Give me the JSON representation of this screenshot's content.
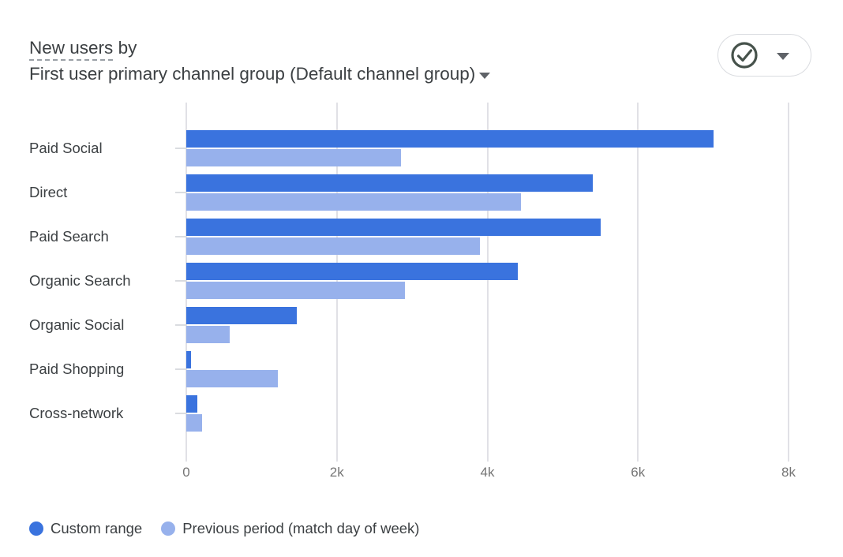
{
  "header": {
    "metric_label": "New users",
    "connector": "by",
    "dimension_label": "First user primary channel group (Default channel group)"
  },
  "toolbar": {
    "status_icon": "check-circle-icon",
    "status_icon_color": "#46524b"
  },
  "chart_data": {
    "type": "bar",
    "orientation": "horizontal",
    "title": "New users by First user primary channel group (Default channel group)",
    "categories": [
      "Paid Social",
      "Direct",
      "Paid Search",
      "Organic Search",
      "Organic Social",
      "Paid Shopping",
      "Cross-network"
    ],
    "series": [
      {
        "name": "Custom range",
        "color": "#3a73de",
        "values": [
          7000,
          5400,
          5500,
          4400,
          1470,
          60,
          150
        ]
      },
      {
        "name": "Previous period (match day of week)",
        "color": "#97b1ec",
        "values": [
          2850,
          4450,
          3900,
          2900,
          580,
          1220,
          210
        ]
      }
    ],
    "xlim": [
      0,
      8000
    ],
    "x_ticks": [
      "0",
      "2k",
      "4k",
      "6k",
      "8k"
    ],
    "x_tick_values": [
      0,
      2000,
      4000,
      6000,
      8000
    ],
    "grid": true,
    "legend_position": "bottom"
  },
  "legend": {
    "items": [
      {
        "label": "Custom range",
        "color": "#3a73de"
      },
      {
        "label": "Previous period (match day of week)",
        "color": "#97b1ec"
      }
    ]
  },
  "colors": {
    "gridline": "#e1e1e6",
    "category_tick": "#dadce0",
    "axis_text": "#757575",
    "label_text": "#3c4043",
    "caret": "#5f6368",
    "pill_border": "#dadce0"
  }
}
